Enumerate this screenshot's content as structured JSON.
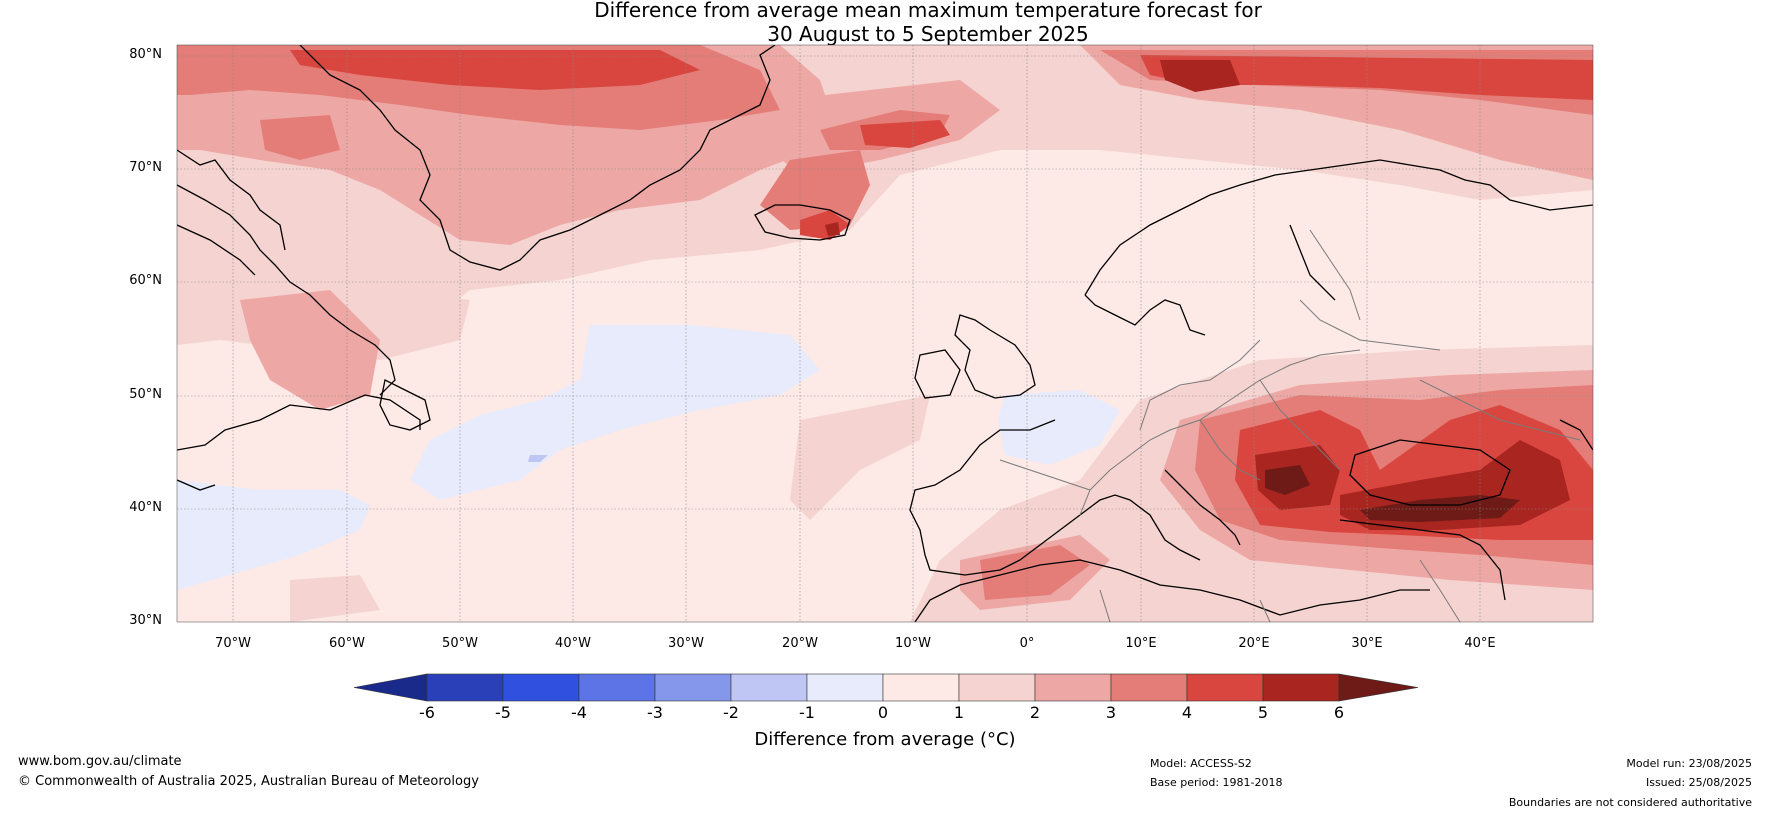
{
  "title": {
    "line1": "Difference from average mean maximum temperature forecast for",
    "line2": "30 August to 5 September 2025"
  },
  "map": {
    "projection": "plate-carree",
    "extent": {
      "lon_min": -75,
      "lon_max": 50,
      "lat_min": 30,
      "lat_max": 81
    },
    "ocean_land_base_color": "#fdeae7",
    "lat_labels": [
      "80°N",
      "70°N",
      "60°N",
      "50°N",
      "40°N",
      "30°N"
    ],
    "lon_labels": [
      "70°W",
      "60°W",
      "50°W",
      "40°W",
      "30°W",
      "20°W",
      "10°W",
      "0°",
      "10°E",
      "20°E",
      "30°E",
      "40°E"
    ]
  },
  "colorbar": {
    "ticks": [
      "-6",
      "-5",
      "-4",
      "-3",
      "-2",
      "-1",
      "0",
      "1",
      "2",
      "3",
      "4",
      "5",
      "6"
    ],
    "colors": [
      "#1a2a8a",
      "#2a40b8",
      "#3050e0",
      "#5c74e6",
      "#8597eb",
      "#bfc6f4",
      "#e8ebfb",
      "#fdeae7",
      "#f5d3d0",
      "#eda8a5",
      "#e47d77",
      "#d9463f",
      "#a82520",
      "#6e1a17"
    ],
    "label": "Difference from average (°C)"
  },
  "footer": {
    "website": "www.bom.gov.au/climate",
    "copyright": "© Commonwealth of Australia 2025, Australian Bureau of Meteorology",
    "model": "Model: ACCESS-S2",
    "base_period": "Base period: 1981-2018",
    "model_run": "Model run: 23/08/2025",
    "issued": "Issued: 25/08/2025",
    "disclaimer": "Boundaries are not considered authoritative"
  }
}
